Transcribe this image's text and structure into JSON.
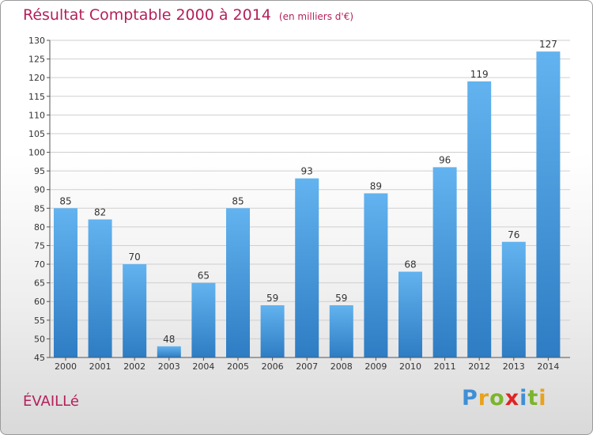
{
  "header": {
    "title": "Résultat Comptable 2000 à 2014",
    "subtitle": "(en milliers d'€)"
  },
  "footer": {
    "town": "ÉVAILLé",
    "logo": [
      "P",
      "r",
      "o",
      "x",
      "i",
      "t",
      "i"
    ],
    "logo_colors": [
      "#3f8fd6",
      "#e8a21c",
      "#7bb52b",
      "#e02424",
      "#3f8fd6",
      "#7bb52b",
      "#e8a21c"
    ]
  },
  "colors": {
    "bar_light": "#62b3ef",
    "bar_dark": "#2e7cc3",
    "axis": "#555555",
    "grid": "#cfcfcf"
  },
  "chart_data": {
    "type": "bar",
    "title": "Résultat Comptable 2000 à 2014",
    "subtitle": "(en milliers d'€)",
    "categories": [
      "2000",
      "2001",
      "2002",
      "2003",
      "2004",
      "2005",
      "2006",
      "2007",
      "2008",
      "2009",
      "2010",
      "2011",
      "2012",
      "2013",
      "2014"
    ],
    "values": [
      85,
      82,
      70,
      48,
      65,
      85,
      59,
      93,
      59,
      89,
      68,
      96,
      119,
      76,
      127
    ],
    "ylim": [
      45,
      130
    ],
    "yticks": [
      45,
      50,
      55,
      60,
      65,
      70,
      75,
      80,
      85,
      90,
      95,
      100,
      105,
      110,
      115,
      120,
      125,
      130
    ],
    "xlabel": "",
    "ylabel": "",
    "grid": true
  }
}
